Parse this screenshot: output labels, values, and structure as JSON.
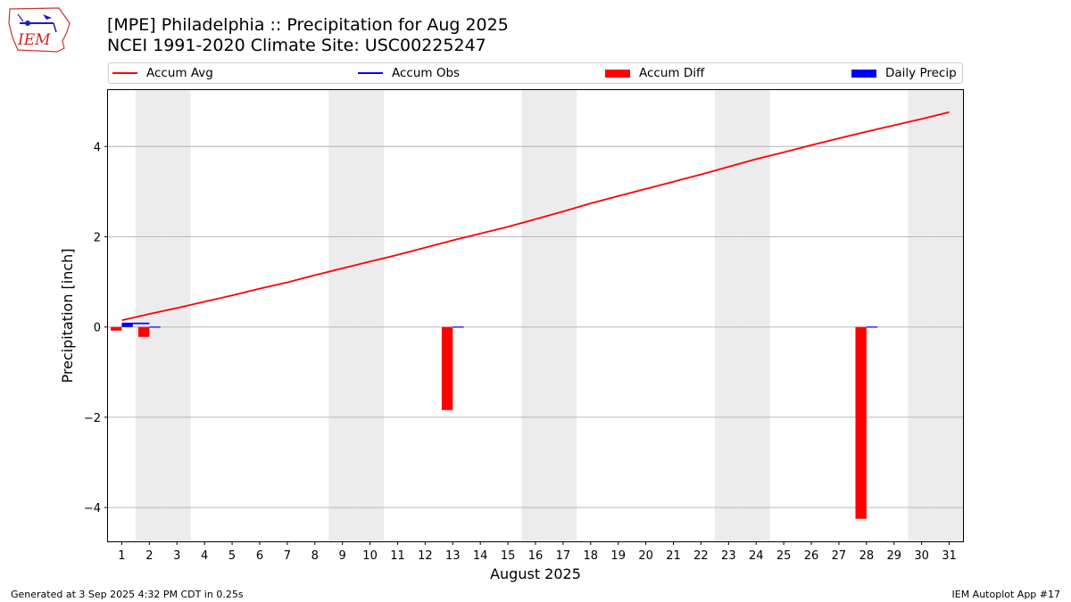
{
  "title_line1": "[MPE] Philadelphia :: Precipitation for Aug 2025",
  "title_line2": "NCEI 1991-2020 Climate Site: USC00225247",
  "logo": {
    "text": "IEM",
    "icon": "iem-iowa-logo"
  },
  "footer_left": "Generated at 3 Sep 2025 4:32 PM CDT in 0.25s",
  "footer_right": "IEM Autoplot App #17",
  "colors": {
    "avg": "#ff0000",
    "obs": "#0000ff",
    "diff": "#ff0000",
    "daily": "#0000ff",
    "weekend": "#ececec",
    "grid": "#b0b0b0"
  },
  "chart_data": {
    "type": "bar",
    "xlabel": "August 2025",
    "ylabel": "Precipitation [inch]",
    "xlim": [
      0.5,
      31.5
    ],
    "ylim": [
      -4.75,
      5.25
    ],
    "yticks": [
      -4,
      -2,
      0,
      2,
      4
    ],
    "ytick_labels": [
      "−4",
      "−2",
      "0",
      "2",
      "4"
    ],
    "categories": [
      "1",
      "2",
      "3",
      "4",
      "5",
      "6",
      "7",
      "8",
      "9",
      "10",
      "11",
      "12",
      "13",
      "14",
      "15",
      "16",
      "17",
      "18",
      "19",
      "20",
      "21",
      "22",
      "23",
      "24",
      "25",
      "26",
      "27",
      "28",
      "29",
      "30",
      "31"
    ],
    "grid": "y",
    "legend_position": "top",
    "weekend_days": [
      2,
      3,
      9,
      10,
      16,
      17,
      23,
      24,
      30,
      31
    ],
    "series": [
      {
        "name": "Accum Avg",
        "kind": "line",
        "values": [
          0.15,
          0.29,
          0.42,
          0.56,
          0.7,
          0.85,
          0.99,
          1.15,
          1.3,
          1.45,
          1.6,
          1.76,
          1.92,
          2.07,
          2.22,
          2.39,
          2.56,
          2.74,
          2.9,
          3.06,
          3.22,
          3.38,
          3.55,
          3.72,
          3.87,
          4.03,
          4.18,
          4.33,
          4.47,
          4.61,
          4.76
        ]
      },
      {
        "name": "Accum Obs",
        "kind": "line",
        "values": [
          0.08,
          0.08,
          null,
          null,
          null,
          null,
          null,
          null,
          null,
          null,
          null,
          null,
          null,
          null,
          null,
          null,
          null,
          null,
          null,
          null,
          null,
          null,
          null,
          null,
          null,
          null,
          null,
          null,
          null,
          null,
          null
        ]
      },
      {
        "name": "Accum Diff",
        "kind": "bar",
        "values": [
          -0.08,
          -0.22,
          null,
          null,
          null,
          null,
          null,
          null,
          null,
          null,
          null,
          null,
          -1.84,
          null,
          null,
          null,
          null,
          null,
          null,
          null,
          null,
          null,
          null,
          null,
          null,
          null,
          null,
          -4.25,
          null,
          null,
          null
        ]
      },
      {
        "name": "Daily Precip",
        "kind": "bar",
        "values": [
          0.08,
          0.01,
          null,
          null,
          null,
          null,
          null,
          null,
          null,
          null,
          null,
          null,
          0.01,
          null,
          null,
          null,
          null,
          null,
          null,
          null,
          null,
          null,
          null,
          null,
          null,
          null,
          null,
          0.01,
          null,
          null,
          null
        ]
      }
    ]
  }
}
